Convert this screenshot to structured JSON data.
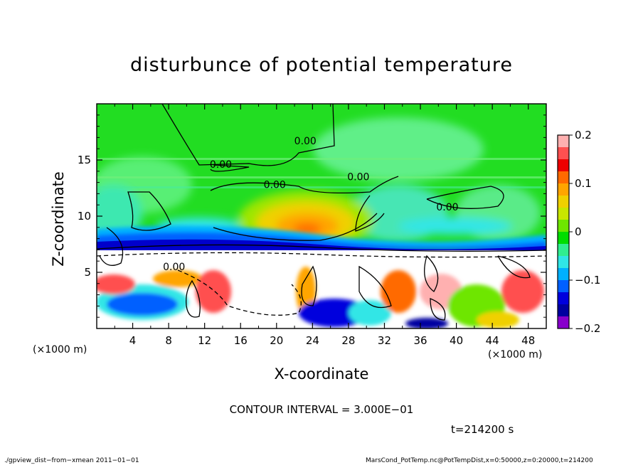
{
  "chart_data": {
    "type": "heatmap",
    "title": "disturbunce of potential temperature",
    "xlabel": "X-coordinate",
    "ylabel": "Z-coordinate",
    "x_unit": "(×1000 m)",
    "y_unit": "(×1000 m)",
    "xlim": [
      0,
      50
    ],
    "ylim": [
      0,
      20
    ],
    "xticks": [
      "4",
      "8",
      "12",
      "16",
      "20",
      "24",
      "28",
      "32",
      "36",
      "40",
      "44",
      "48"
    ],
    "xtick_values": [
      4,
      8,
      12,
      16,
      20,
      24,
      28,
      32,
      36,
      40,
      44,
      48
    ],
    "yticks": [
      "5",
      "10",
      "15"
    ],
    "ytick_values": [
      5,
      10,
      15
    ],
    "colorbar": {
      "range": [
        -0.2,
        0.2
      ],
      "tick_labels": [
        "0.2",
        "0.1",
        "0",
        "−0.1",
        "−0.2"
      ],
      "tick_values": [
        0.2,
        0.1,
        0,
        -0.1,
        -0.2
      ],
      "colors": [
        "#ffb0b0",
        "#ff5050",
        "#ee0000",
        "#ff6a00",
        "#ffa500",
        "#f0d000",
        "#c8e600",
        "#6ee600",
        "#00dd00",
        "#30ee90",
        "#30e6e6",
        "#00b0ff",
        "#0060ff",
        "#0000dd",
        "#0000a0",
        "#8800cc"
      ]
    },
    "contour_labels": [
      {
        "text": "0.00",
        "x": 23.2,
        "z": 16.4
      },
      {
        "text": "0.00",
        "x": 13.8,
        "z": 14.3
      },
      {
        "text": "0.00",
        "x": 19.8,
        "z": 12.5
      },
      {
        "text": "0.00",
        "x": 29.1,
        "z": 13.2
      },
      {
        "text": "0.00",
        "x": 39.0,
        "z": 10.5
      },
      {
        "text": "0.00",
        "x": 8.6,
        "z": 5.2
      }
    ],
    "contour_interval": 0.3,
    "field_description": "green (~0) above about z=8; warm orange/yellow anomaly near x=22, z=9; blue band (negative) along z~7.5; white undershoot (<-0.2) below; mixed warm and cold anomalies near the surface"
  },
  "annotations": {
    "x_unit": "(×1000 m)",
    "x_unit_left": "(×1000 m)",
    "contour_interval": "CONTOUR INTERVAL = 3.000E−01",
    "time": "t=214200 s",
    "footer_left": "./gpview_dist−from−xmean  2011−01−01",
    "footer_right": "MarsCond_PotTemp.nc@PotTempDist,x=0:50000,z=0:20000,t=214200"
  }
}
